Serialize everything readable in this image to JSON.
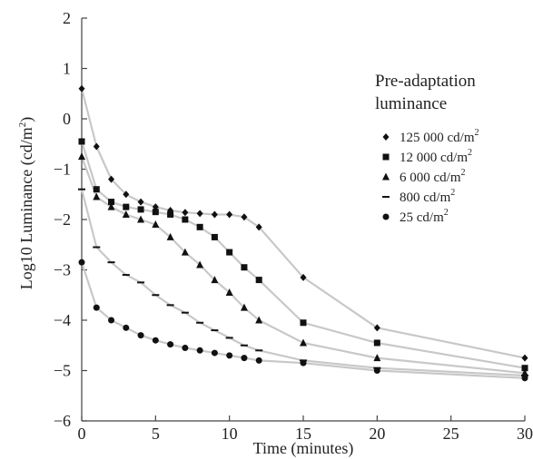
{
  "chart_data": {
    "type": "line",
    "title": "",
    "xlabel": "Time (minutes)",
    "ylabel": "Log10 Luminance (cd/m",
    "ylabel_sup": "2",
    "ylabel_close": ")",
    "xlim": [
      0,
      30
    ],
    "ylim": [
      -6,
      2
    ],
    "xticks": [
      0,
      5,
      10,
      15,
      20,
      25,
      30
    ],
    "yticks": [
      2,
      1,
      0,
      -1,
      -2,
      -3,
      -4,
      -5,
      -6
    ],
    "xtick_labels": [
      "0",
      "5",
      "10",
      "15",
      "20",
      "25",
      "30"
    ],
    "ytick_labels": [
      "2",
      "1",
      "0",
      "−1",
      "−2",
      "−3",
      "−4",
      "−5",
      "−6"
    ],
    "grid": false,
    "line_color": "#c8c8c8",
    "marker_color": "#111111",
    "legend": {
      "title_line1": "Pre-adaptation",
      "title_line2": "luminance",
      "placement": "right",
      "entries": [
        {
          "base": "125 000 cd/m",
          "sup": "2",
          "marker": "diamond"
        },
        {
          "base": "12 000 cd/m",
          "sup": "2",
          "marker": "square"
        },
        {
          "base": "6 000 cd/m",
          "sup": "2",
          "marker": "triangle"
        },
        {
          "base": "800 cd/m",
          "sup": "2",
          "marker": "dash"
        },
        {
          "base": "25 cd/m",
          "sup": "2",
          "marker": "circle"
        }
      ]
    },
    "series": [
      {
        "marker": "diamond",
        "x": [
          0,
          1,
          2,
          3,
          4,
          5,
          6,
          7,
          8,
          9,
          10,
          11,
          12,
          15,
          20,
          30
        ],
        "y": [
          0.6,
          -0.55,
          -1.2,
          -1.5,
          -1.65,
          -1.75,
          -1.82,
          -1.86,
          -1.88,
          -1.9,
          -1.9,
          -1.95,
          -2.15,
          -3.15,
          -4.15,
          -4.75
        ]
      },
      {
        "marker": "square",
        "x": [
          0,
          1,
          2,
          3,
          4,
          5,
          6,
          7,
          8,
          9,
          10,
          11,
          12,
          15,
          20,
          30
        ],
        "y": [
          -0.45,
          -1.4,
          -1.65,
          -1.75,
          -1.8,
          -1.85,
          -1.9,
          -2.0,
          -2.15,
          -2.35,
          -2.65,
          -2.95,
          -3.2,
          -4.05,
          -4.45,
          -4.95
        ]
      },
      {
        "marker": "triangle",
        "x": [
          0,
          1,
          2,
          3,
          4,
          5,
          6,
          7,
          8,
          9,
          10,
          11,
          12,
          15,
          20,
          30
        ],
        "y": [
          -0.75,
          -1.55,
          -1.75,
          -1.9,
          -2.0,
          -2.1,
          -2.35,
          -2.65,
          -2.9,
          -3.2,
          -3.45,
          -3.75,
          -4.0,
          -4.45,
          -4.75,
          -5.05
        ]
      },
      {
        "marker": "dash",
        "x": [
          0,
          1,
          2,
          3,
          4,
          5,
          6,
          7,
          8,
          9,
          10,
          11,
          12,
          15,
          20,
          30
        ],
        "y": [
          -1.4,
          -2.55,
          -2.85,
          -3.1,
          -3.25,
          -3.5,
          -3.7,
          -3.85,
          -4.05,
          -4.2,
          -4.35,
          -4.5,
          -4.6,
          -4.8,
          -4.95,
          -5.1
        ]
      },
      {
        "marker": "circle",
        "x": [
          0,
          1,
          2,
          3,
          4,
          5,
          6,
          7,
          8,
          9,
          10,
          11,
          12,
          15,
          20,
          30
        ],
        "y": [
          -2.85,
          -3.75,
          -4.0,
          -4.15,
          -4.3,
          -4.4,
          -4.48,
          -4.55,
          -4.6,
          -4.65,
          -4.7,
          -4.75,
          -4.8,
          -4.85,
          -5.0,
          -5.15
        ]
      }
    ]
  }
}
